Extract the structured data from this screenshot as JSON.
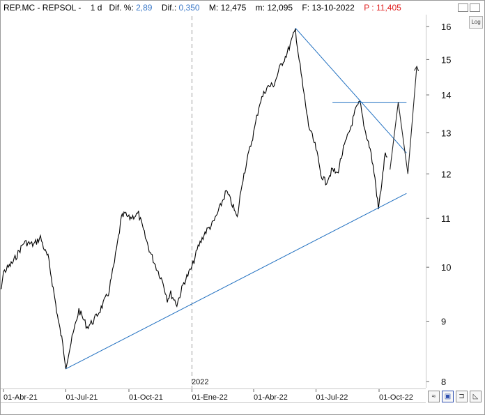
{
  "header": {
    "symbol": "REP.MC - REPSOL -",
    "period": "1 d",
    "dif_pct_label": "Dif. %:",
    "dif_pct_value": "2,89",
    "dif_label": "Dif.:",
    "dif_value": "0,350",
    "max_label": "M:",
    "max_value": "12,475",
    "min_label": "m:",
    "min_value": "12,095",
    "date_label": "F:",
    "date_value": "13-10-2022",
    "price_label": "P :",
    "price_value": "11,405"
  },
  "log_button": "Log",
  "colors": {
    "price": "#000000",
    "trendline": "#1f6fc0",
    "accent_blue": "#3a78c8",
    "accent_red": "#e02020"
  },
  "chart_data": {
    "type": "line",
    "title": "",
    "xlabel": "",
    "ylabel": "",
    "y_scale": "log",
    "ylim": [
      8,
      16.4
    ],
    "y_ticks": [
      8,
      9,
      10,
      11,
      12,
      13,
      14,
      15,
      16
    ],
    "x_tick_labels": [
      "01-Abr-21",
      "01-Jul-21",
      "01-Oct-21",
      "01-Ene-22",
      "01-Abr-22",
      "01-Jul-22",
      "01-Oct-22"
    ],
    "year_label": "2022",
    "grid": false,
    "series": [
      {
        "kind": "price",
        "points": [
          [
            "2021-03-19",
            9.3
          ],
          [
            "2021-03-26",
            9.4
          ],
          [
            "2021-04-01",
            9.9
          ],
          [
            "2021-04-15",
            10.1
          ],
          [
            "2021-05-01",
            10.5
          ],
          [
            "2021-05-15",
            10.45
          ],
          [
            "2021-05-25",
            10.6
          ],
          [
            "2021-06-01",
            10.3
          ],
          [
            "2021-06-05",
            10.2
          ],
          [
            "2021-06-10",
            9.8
          ],
          [
            "2021-06-15",
            9.4
          ],
          [
            "2021-06-20",
            9.0
          ],
          [
            "2021-06-25",
            8.7
          ],
          [
            "2021-07-01",
            8.25
          ],
          [
            "2021-07-10",
            8.7
          ],
          [
            "2021-07-20",
            9.2
          ],
          [
            "2021-08-01",
            8.9
          ],
          [
            "2021-08-10",
            9.0
          ],
          [
            "2021-08-20",
            9.2
          ],
          [
            "2021-09-01",
            9.5
          ],
          [
            "2021-09-10",
            10.1
          ],
          [
            "2021-09-20",
            11.0
          ],
          [
            "2021-09-25",
            11.1
          ],
          [
            "2021-10-01",
            11.0
          ],
          [
            "2021-10-15",
            11.1
          ],
          [
            "2021-10-25",
            10.6
          ],
          [
            "2021-11-01",
            10.3
          ],
          [
            "2021-11-10",
            10.0
          ],
          [
            "2021-11-20",
            9.7
          ],
          [
            "2021-11-26",
            9.4
          ],
          [
            "2021-12-01",
            9.5
          ],
          [
            "2021-12-10",
            9.3
          ],
          [
            "2021-12-20",
            9.7
          ],
          [
            "2022-01-01",
            10.0
          ],
          [
            "2022-01-10",
            10.4
          ],
          [
            "2022-01-20",
            10.7
          ],
          [
            "2022-02-01",
            10.9
          ],
          [
            "2022-02-10",
            11.2
          ],
          [
            "2022-02-20",
            11.6
          ],
          [
            "2022-03-01",
            11.3
          ],
          [
            "2022-03-08",
            11.0
          ],
          [
            "2022-03-15",
            11.8
          ],
          [
            "2022-03-25",
            12.5
          ],
          [
            "2022-04-01",
            13.0
          ],
          [
            "2022-04-10",
            13.8
          ],
          [
            "2022-04-20",
            14.2
          ],
          [
            "2022-05-01",
            14.3
          ],
          [
            "2022-05-10",
            14.8
          ],
          [
            "2022-05-20",
            15.2
          ],
          [
            "2022-06-01",
            15.9
          ],
          [
            "2022-06-05",
            15.2
          ],
          [
            "2022-06-12",
            14.2
          ],
          [
            "2022-06-20",
            13.2
          ],
          [
            "2022-07-01",
            12.6
          ],
          [
            "2022-07-08",
            12.0
          ],
          [
            "2022-07-15",
            11.8
          ],
          [
            "2022-07-25",
            12.1
          ],
          [
            "2022-08-01",
            12.0
          ],
          [
            "2022-08-10",
            12.6
          ],
          [
            "2022-08-20",
            13.1
          ],
          [
            "2022-08-28",
            13.6
          ],
          [
            "2022-09-03",
            13.8
          ],
          [
            "2022-09-10",
            13.1
          ],
          [
            "2022-09-18",
            12.6
          ],
          [
            "2022-09-25",
            11.9
          ],
          [
            "2022-09-30",
            11.2
          ],
          [
            "2022-10-05",
            11.8
          ],
          [
            "2022-10-10",
            12.5
          ],
          [
            "2022-10-13",
            12.4
          ]
        ]
      },
      {
        "kind": "trendline",
        "points": [
          [
            "2021-07-01",
            8.2
          ],
          [
            "2022-11-10",
            11.55
          ]
        ]
      },
      {
        "kind": "trendline",
        "points": [
          [
            "2022-06-01",
            15.95
          ],
          [
            "2022-11-10",
            12.5
          ]
        ]
      },
      {
        "kind": "trendline",
        "points": [
          [
            "2022-07-25",
            13.8
          ],
          [
            "2022-11-10",
            13.8
          ]
        ]
      },
      {
        "kind": "projection",
        "points": [
          [
            "2022-10-17",
            12.1
          ],
          [
            "2022-10-29",
            13.8
          ],
          [
            "2022-11-12",
            12.0
          ],
          [
            "2022-11-25",
            14.8
          ]
        ]
      }
    ]
  }
}
